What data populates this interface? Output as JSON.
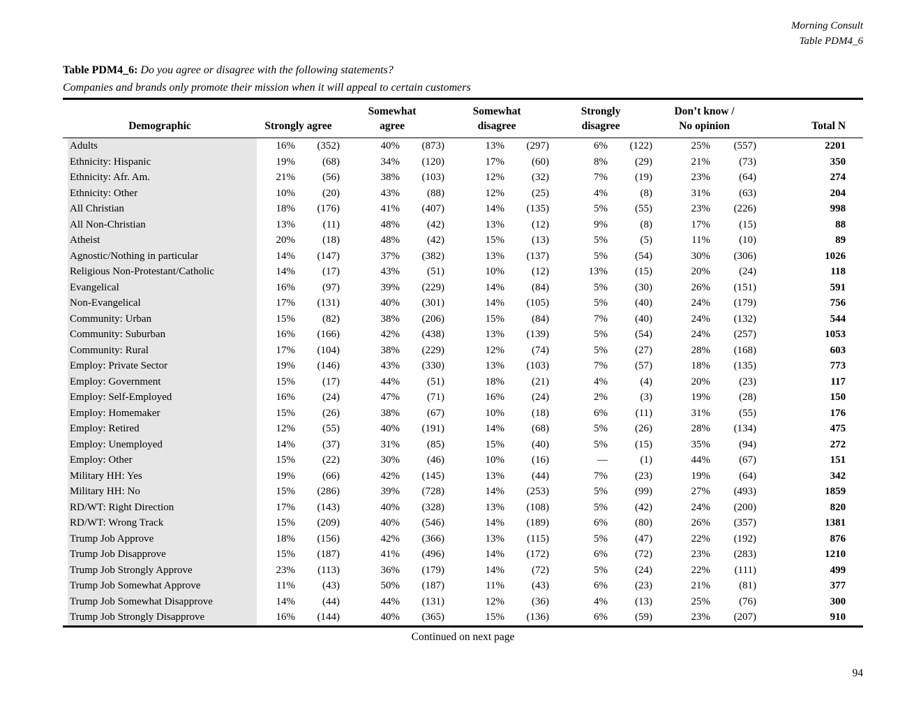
{
  "meta": {
    "source_name": "Morning Consult",
    "table_reference": "Table PDM4_6"
  },
  "title": {
    "label": "Table PDM4_6:",
    "question": "Do you agree or disagree with the following statements?",
    "statement": "Companies and brands only promote their mission when it will appeal to certain customers"
  },
  "footer": {
    "continued": "Continued on next page",
    "page_number": "94"
  },
  "colors": {
    "background": "#ffffff",
    "text": "#000000",
    "rule": "#000000",
    "demographic_shade": "#e6e6e6"
  },
  "table": {
    "columns": [
      {
        "id": "demographic",
        "lines": [
          "Demographic"
        ]
      },
      {
        "id": "strongly-agree",
        "lines": [
          "Strongly agree"
        ]
      },
      {
        "id": "somewhat-agree",
        "lines": [
          "Somewhat",
          "agree"
        ]
      },
      {
        "id": "somewhat-disagree",
        "lines": [
          "Somewhat",
          "disagree"
        ]
      },
      {
        "id": "strongly-disagree",
        "lines": [
          "Strongly",
          "disagree"
        ]
      },
      {
        "id": "dont-know-no-opinion",
        "lines": [
          "Don’t know /",
          "No opinion"
        ]
      },
      {
        "id": "total-n",
        "lines": [
          "Total N"
        ]
      }
    ],
    "rows": [
      {
        "label": "Adults",
        "values": [
          "16%",
          "(352)",
          "40%",
          "(873)",
          "13%",
          "(297)",
          "6%",
          "(122)",
          "25%",
          "(557)"
        ],
        "total": "2201"
      },
      {
        "label": "Ethnicity: Hispanic",
        "values": [
          "19%",
          "(68)",
          "34%",
          "(120)",
          "17%",
          "(60)",
          "8%",
          "(29)",
          "21%",
          "(73)"
        ],
        "total": "350"
      },
      {
        "label": "Ethnicity: Afr. Am.",
        "values": [
          "21%",
          "(56)",
          "38%",
          "(103)",
          "12%",
          "(32)",
          "7%",
          "(19)",
          "23%",
          "(64)"
        ],
        "total": "274"
      },
      {
        "label": "Ethnicity: Other",
        "values": [
          "10%",
          "(20)",
          "43%",
          "(88)",
          "12%",
          "(25)",
          "4%",
          "(8)",
          "31%",
          "(63)"
        ],
        "total": "204"
      },
      {
        "label": "All Christian",
        "values": [
          "18%",
          "(176)",
          "41%",
          "(407)",
          "14%",
          "(135)",
          "5%",
          "(55)",
          "23%",
          "(226)"
        ],
        "total": "998"
      },
      {
        "label": "All Non-Christian",
        "values": [
          "13%",
          "(11)",
          "48%",
          "(42)",
          "13%",
          "(12)",
          "9%",
          "(8)",
          "17%",
          "(15)"
        ],
        "total": "88"
      },
      {
        "label": "Atheist",
        "values": [
          "20%",
          "(18)",
          "48%",
          "(42)",
          "15%",
          "(13)",
          "5%",
          "(5)",
          "11%",
          "(10)"
        ],
        "total": "89"
      },
      {
        "label": "Agnostic/Nothing in particular",
        "values": [
          "14%",
          "(147)",
          "37%",
          "(382)",
          "13%",
          "(137)",
          "5%",
          "(54)",
          "30%",
          "(306)"
        ],
        "total": "1026"
      },
      {
        "label": "Religious Non-Protestant/Catholic",
        "values": [
          "14%",
          "(17)",
          "43%",
          "(51)",
          "10%",
          "(12)",
          "13%",
          "(15)",
          "20%",
          "(24)"
        ],
        "total": "118"
      },
      {
        "label": "Evangelical",
        "values": [
          "16%",
          "(97)",
          "39%",
          "(229)",
          "14%",
          "(84)",
          "5%",
          "(30)",
          "26%",
          "(151)"
        ],
        "total": "591"
      },
      {
        "label": "Non-Evangelical",
        "values": [
          "17%",
          "(131)",
          "40%",
          "(301)",
          "14%",
          "(105)",
          "5%",
          "(40)",
          "24%",
          "(179)"
        ],
        "total": "756"
      },
      {
        "label": "Community: Urban",
        "values": [
          "15%",
          "(82)",
          "38%",
          "(206)",
          "15%",
          "(84)",
          "7%",
          "(40)",
          "24%",
          "(132)"
        ],
        "total": "544"
      },
      {
        "label": "Community: Suburban",
        "values": [
          "16%",
          "(166)",
          "42%",
          "(438)",
          "13%",
          "(139)",
          "5%",
          "(54)",
          "24%",
          "(257)"
        ],
        "total": "1053"
      },
      {
        "label": "Community: Rural",
        "values": [
          "17%",
          "(104)",
          "38%",
          "(229)",
          "12%",
          "(74)",
          "5%",
          "(27)",
          "28%",
          "(168)"
        ],
        "total": "603"
      },
      {
        "label": "Employ: Private Sector",
        "values": [
          "19%",
          "(146)",
          "43%",
          "(330)",
          "13%",
          "(103)",
          "7%",
          "(57)",
          "18%",
          "(135)"
        ],
        "total": "773"
      },
      {
        "label": "Employ: Government",
        "values": [
          "15%",
          "(17)",
          "44%",
          "(51)",
          "18%",
          "(21)",
          "4%",
          "(4)",
          "20%",
          "(23)"
        ],
        "total": "117"
      },
      {
        "label": "Employ: Self-Employed",
        "values": [
          "16%",
          "(24)",
          "47%",
          "(71)",
          "16%",
          "(24)",
          "2%",
          "(3)",
          "19%",
          "(28)"
        ],
        "total": "150"
      },
      {
        "label": "Employ: Homemaker",
        "values": [
          "15%",
          "(26)",
          "38%",
          "(67)",
          "10%",
          "(18)",
          "6%",
          "(11)",
          "31%",
          "(55)"
        ],
        "total": "176"
      },
      {
        "label": "Employ: Retired",
        "values": [
          "12%",
          "(55)",
          "40%",
          "(191)",
          "14%",
          "(68)",
          "5%",
          "(26)",
          "28%",
          "(134)"
        ],
        "total": "475"
      },
      {
        "label": "Employ: Unemployed",
        "values": [
          "14%",
          "(37)",
          "31%",
          "(85)",
          "15%",
          "(40)",
          "5%",
          "(15)",
          "35%",
          "(94)"
        ],
        "total": "272"
      },
      {
        "label": "Employ: Other",
        "values": [
          "15%",
          "(22)",
          "30%",
          "(46)",
          "10%",
          "(16)",
          "—",
          "(1)",
          "44%",
          "(67)"
        ],
        "total": "151"
      },
      {
        "label": "Military HH: Yes",
        "values": [
          "19%",
          "(66)",
          "42%",
          "(145)",
          "13%",
          "(44)",
          "7%",
          "(23)",
          "19%",
          "(64)"
        ],
        "total": "342"
      },
      {
        "label": "Military HH: No",
        "values": [
          "15%",
          "(286)",
          "39%",
          "(728)",
          "14%",
          "(253)",
          "5%",
          "(99)",
          "27%",
          "(493)"
        ],
        "total": "1859"
      },
      {
        "label": "RD/WT: Right Direction",
        "values": [
          "17%",
          "(143)",
          "40%",
          "(328)",
          "13%",
          "(108)",
          "5%",
          "(42)",
          "24%",
          "(200)"
        ],
        "total": "820"
      },
      {
        "label": "RD/WT: Wrong Track",
        "values": [
          "15%",
          "(209)",
          "40%",
          "(546)",
          "14%",
          "(189)",
          "6%",
          "(80)",
          "26%",
          "(357)"
        ],
        "total": "1381"
      },
      {
        "label": "Trump Job Approve",
        "values": [
          "18%",
          "(156)",
          "42%",
          "(366)",
          "13%",
          "(115)",
          "5%",
          "(47)",
          "22%",
          "(192)"
        ],
        "total": "876"
      },
      {
        "label": "Trump Job Disapprove",
        "values": [
          "15%",
          "(187)",
          "41%",
          "(496)",
          "14%",
          "(172)",
          "6%",
          "(72)",
          "23%",
          "(283)"
        ],
        "total": "1210"
      },
      {
        "label": "Trump Job Strongly Approve",
        "values": [
          "23%",
          "(113)",
          "36%",
          "(179)",
          "14%",
          "(72)",
          "5%",
          "(24)",
          "22%",
          "(111)"
        ],
        "total": "499"
      },
      {
        "label": "Trump Job Somewhat Approve",
        "values": [
          "11%",
          "(43)",
          "50%",
          "(187)",
          "11%",
          "(43)",
          "6%",
          "(23)",
          "21%",
          "(81)"
        ],
        "total": "377"
      },
      {
        "label": "Trump Job Somewhat Disapprove",
        "values": [
          "14%",
          "(44)",
          "44%",
          "(131)",
          "12%",
          "(36)",
          "4%",
          "(13)",
          "25%",
          "(76)"
        ],
        "total": "300"
      },
      {
        "label": "Trump Job Strongly Disapprove",
        "values": [
          "16%",
          "(144)",
          "40%",
          "(365)",
          "15%",
          "(136)",
          "6%",
          "(59)",
          "23%",
          "(207)"
        ],
        "total": "910"
      }
    ]
  }
}
